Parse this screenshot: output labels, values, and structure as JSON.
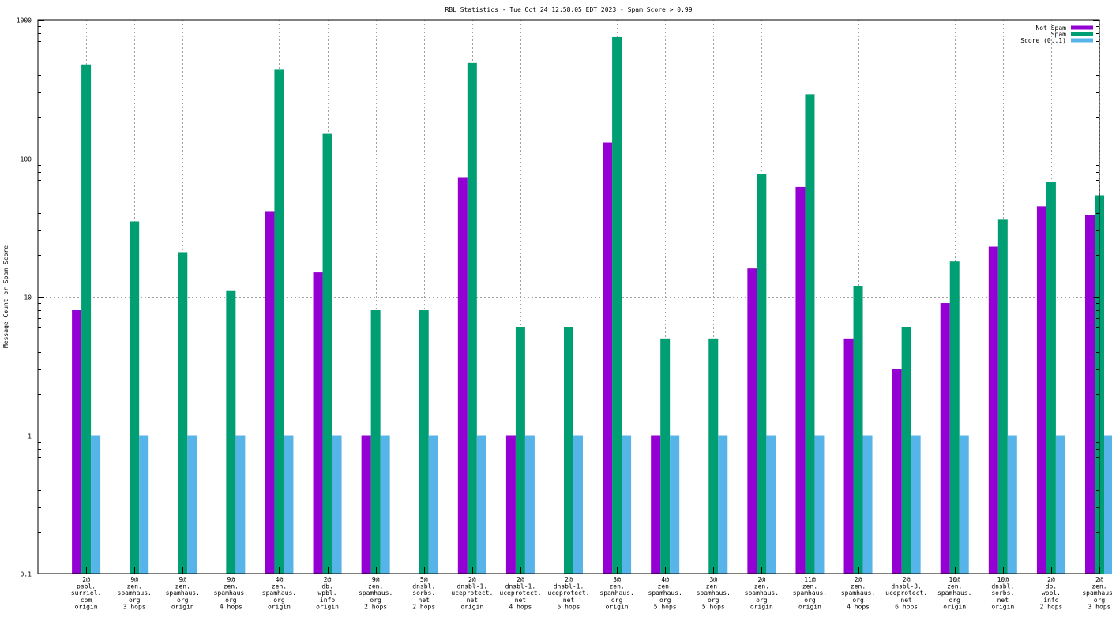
{
  "chart_data": {
    "type": "bar",
    "title": "RBL Statistics - Tue Oct 24 12:58:05 EDT 2023 - Spam Score > 0.99",
    "xlabel": "",
    "ylabel": "Message Count or Spam Score",
    "yscale": "log",
    "ylim": [
      0.1,
      1000
    ],
    "yticks": [
      "0.1",
      "1",
      "10",
      "100",
      "1000"
    ],
    "grid": true,
    "legend_position": "top-right",
    "categories": [
      [
        "2@",
        "psbl.",
        "surriel.",
        "com",
        "origin"
      ],
      [
        "9@",
        "zen.",
        "spamhaus.",
        "org",
        "3 hops"
      ],
      [
        "9@",
        "zen.",
        "spamhaus.",
        "org",
        "origin"
      ],
      [
        "9@",
        "zen.",
        "spamhaus.",
        "org",
        "4 hops"
      ],
      [
        "4@",
        "zen.",
        "spamhaus.",
        "org",
        "origin"
      ],
      [
        "2@",
        "db.",
        "wpbl.",
        "info",
        "origin"
      ],
      [
        "9@",
        "zen.",
        "spamhaus.",
        "org",
        "2 hops"
      ],
      [
        "5@",
        "dnsbl.",
        "sorbs.",
        "net",
        "2 hops"
      ],
      [
        "2@",
        "dnsbl-1.",
        "uceprotect.",
        "net",
        "origin"
      ],
      [
        "2@",
        "dnsbl-1.",
        "uceprotect.",
        "net",
        "4 hops"
      ],
      [
        "2@",
        "dnsbl-1.",
        "uceprotect.",
        "net",
        "5 hops"
      ],
      [
        "3@",
        "zen.",
        "spamhaus.",
        "org",
        "origin"
      ],
      [
        "4@",
        "zen.",
        "spamhaus.",
        "org",
        "5 hops"
      ],
      [
        "3@",
        "zen.",
        "spamhaus.",
        "org",
        "5 hops"
      ],
      [
        "2@",
        "zen.",
        "spamhaus.",
        "org",
        "origin"
      ],
      [
        "11@",
        "zen.",
        "spamhaus.",
        "org",
        "origin"
      ],
      [
        "2@",
        "zen.",
        "spamhaus.",
        "org",
        "4 hops"
      ],
      [
        "2@",
        "dnsbl-3.",
        "uceprotect.",
        "net",
        "6 hops"
      ],
      [
        "10@",
        "zen.",
        "spamhaus.",
        "org",
        "origin"
      ],
      [
        "10@",
        "dnsbl.",
        "sorbs.",
        "net",
        "origin"
      ],
      [
        "2@",
        "db.",
        "wpbl.",
        "info",
        "2 hops"
      ],
      [
        "2@",
        "zen.",
        "spamhaus.",
        "org",
        "3 hops"
      ]
    ],
    "series": [
      {
        "name": "Not Spam",
        "color": "#9400d3",
        "values": [
          8,
          null,
          null,
          null,
          41,
          15,
          1,
          null,
          73,
          1,
          null,
          130,
          1,
          null,
          16,
          62,
          5,
          3,
          9,
          23,
          45,
          39
        ]
      },
      {
        "name": "Spam",
        "color": "#009e73",
        "values": [
          475,
          35,
          21,
          11,
          435,
          150,
          8,
          8,
          487,
          6,
          6,
          750,
          5,
          5,
          77,
          290,
          12,
          6,
          18,
          36,
          67,
          54
        ]
      },
      {
        "name": "Score (0..1)",
        "color": "#56b4e9",
        "values": [
          1,
          1,
          1,
          1,
          1,
          1,
          1,
          1,
          1,
          1,
          1,
          1,
          1,
          1,
          1,
          1,
          1,
          1,
          1,
          1,
          1,
          1
        ]
      }
    ]
  }
}
